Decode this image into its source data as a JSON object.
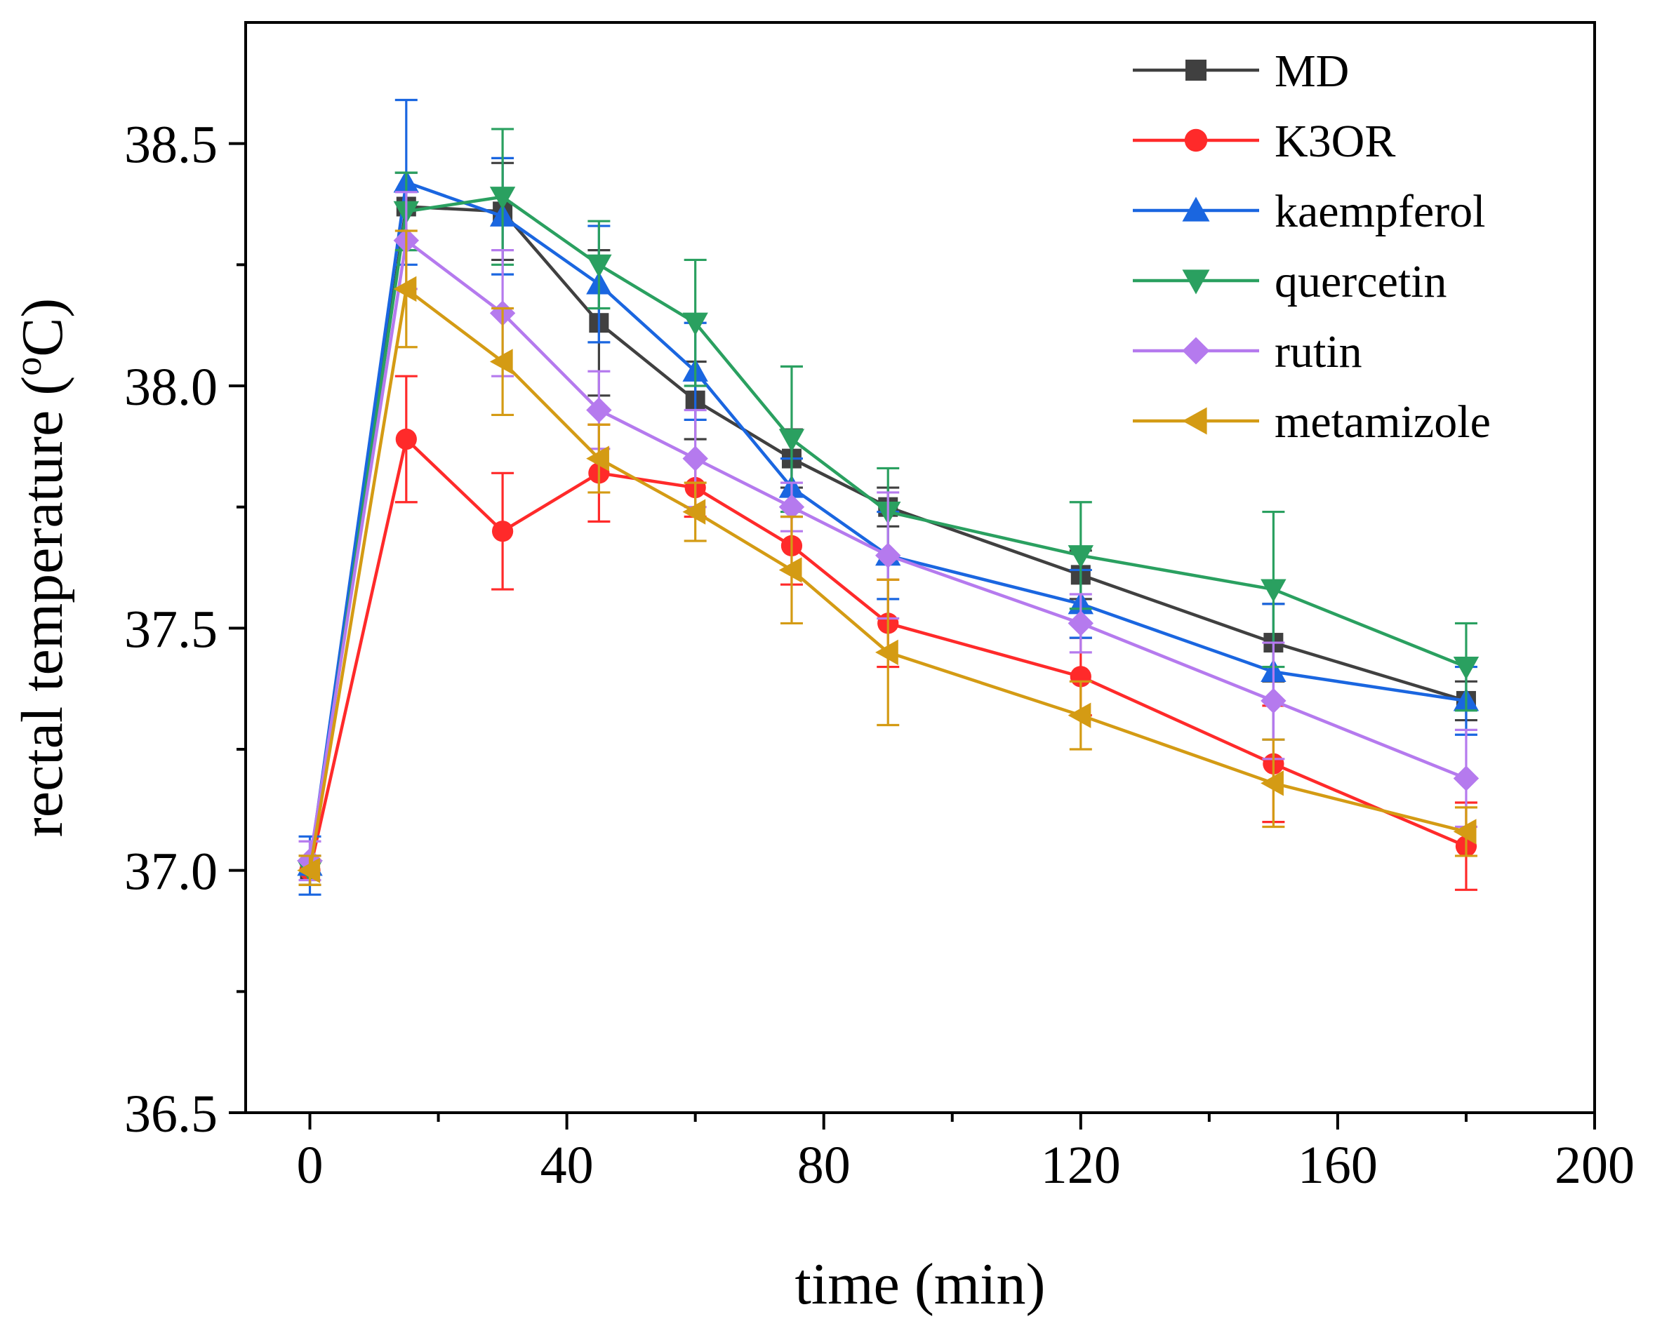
{
  "chart_data": {
    "type": "line",
    "title": "",
    "xlabel": "time (min)",
    "ylabel_parts": [
      "rectal temperature (",
      "o",
      "C)"
    ],
    "xlim": [
      -10,
      200
    ],
    "ylim": [
      36.5,
      38.75
    ],
    "xticks": [
      0,
      40,
      80,
      120,
      160,
      200
    ],
    "xtick_labels": [
      "0",
      "40",
      "80",
      "120",
      "160",
      "200"
    ],
    "x_minor_ticks": [
      20,
      60,
      100,
      140,
      180
    ],
    "yticks": [
      36.5,
      37.0,
      37.5,
      38.0,
      38.5
    ],
    "ytick_labels": [
      "36.5",
      "37.0",
      "37.5",
      "38.0",
      "38.5"
    ],
    "y_minor_ticks": [
      36.75,
      37.25,
      37.75,
      38.25
    ],
    "legend_position": "top-right",
    "x": [
      0,
      15,
      30,
      45,
      60,
      75,
      90,
      120,
      150,
      180
    ],
    "series": [
      {
        "name": "MD",
        "color": "#404040",
        "marker": "square",
        "values": [
          37.0,
          38.37,
          38.36,
          38.13,
          37.97,
          37.85,
          37.75,
          37.61,
          37.47,
          37.35
        ],
        "errors": [
          0.03,
          0.07,
          0.1,
          0.15,
          0.08,
          0.06,
          0.04,
          0.05,
          0.08,
          0.04
        ]
      },
      {
        "name": "K3OR",
        "color": "#ff2a2a",
        "marker": "circle",
        "values": [
          37.0,
          37.89,
          37.7,
          37.82,
          37.79,
          37.67,
          37.51,
          37.4,
          37.22,
          37.05
        ],
        "errors": [
          0.03,
          0.13,
          0.12,
          0.1,
          0.06,
          0.08,
          0.09,
          0.08,
          0.12,
          0.09
        ]
      },
      {
        "name": "kaempferol",
        "color": "#1a66e0",
        "marker": "triangle-up",
        "values": [
          37.01,
          38.42,
          38.35,
          38.21,
          38.03,
          37.79,
          37.65,
          37.55,
          37.41,
          37.35
        ],
        "errors": [
          0.06,
          0.17,
          0.12,
          0.12,
          0.1,
          0.06,
          0.09,
          0.07,
          0.14,
          0.07
        ]
      },
      {
        "name": "quercetin",
        "color": "#2aa060",
        "marker": "triangle-down",
        "values": [
          37.0,
          38.36,
          38.39,
          38.25,
          38.13,
          37.89,
          37.74,
          37.65,
          37.58,
          37.42
        ],
        "errors": [
          0.03,
          0.08,
          0.14,
          0.09,
          0.13,
          0.15,
          0.09,
          0.11,
          0.16,
          0.09
        ]
      },
      {
        "name": "rutin",
        "color": "#b57aee",
        "marker": "diamond",
        "values": [
          37.02,
          38.3,
          38.15,
          37.95,
          37.85,
          37.75,
          37.65,
          37.51,
          37.35,
          37.19
        ],
        "errors": [
          0.04,
          0.1,
          0.13,
          0.08,
          0.1,
          0.05,
          0.13,
          0.06,
          0.12,
          0.1
        ]
      },
      {
        "name": "metamizole",
        "color": "#d49b14",
        "marker": "triangle-left",
        "values": [
          37.0,
          38.2,
          38.05,
          37.85,
          37.74,
          37.62,
          37.45,
          37.32,
          37.18,
          37.08
        ],
        "errors": [
          0.03,
          0.12,
          0.11,
          0.07,
          0.06,
          0.11,
          0.15,
          0.07,
          0.09,
          0.05
        ]
      }
    ]
  }
}
